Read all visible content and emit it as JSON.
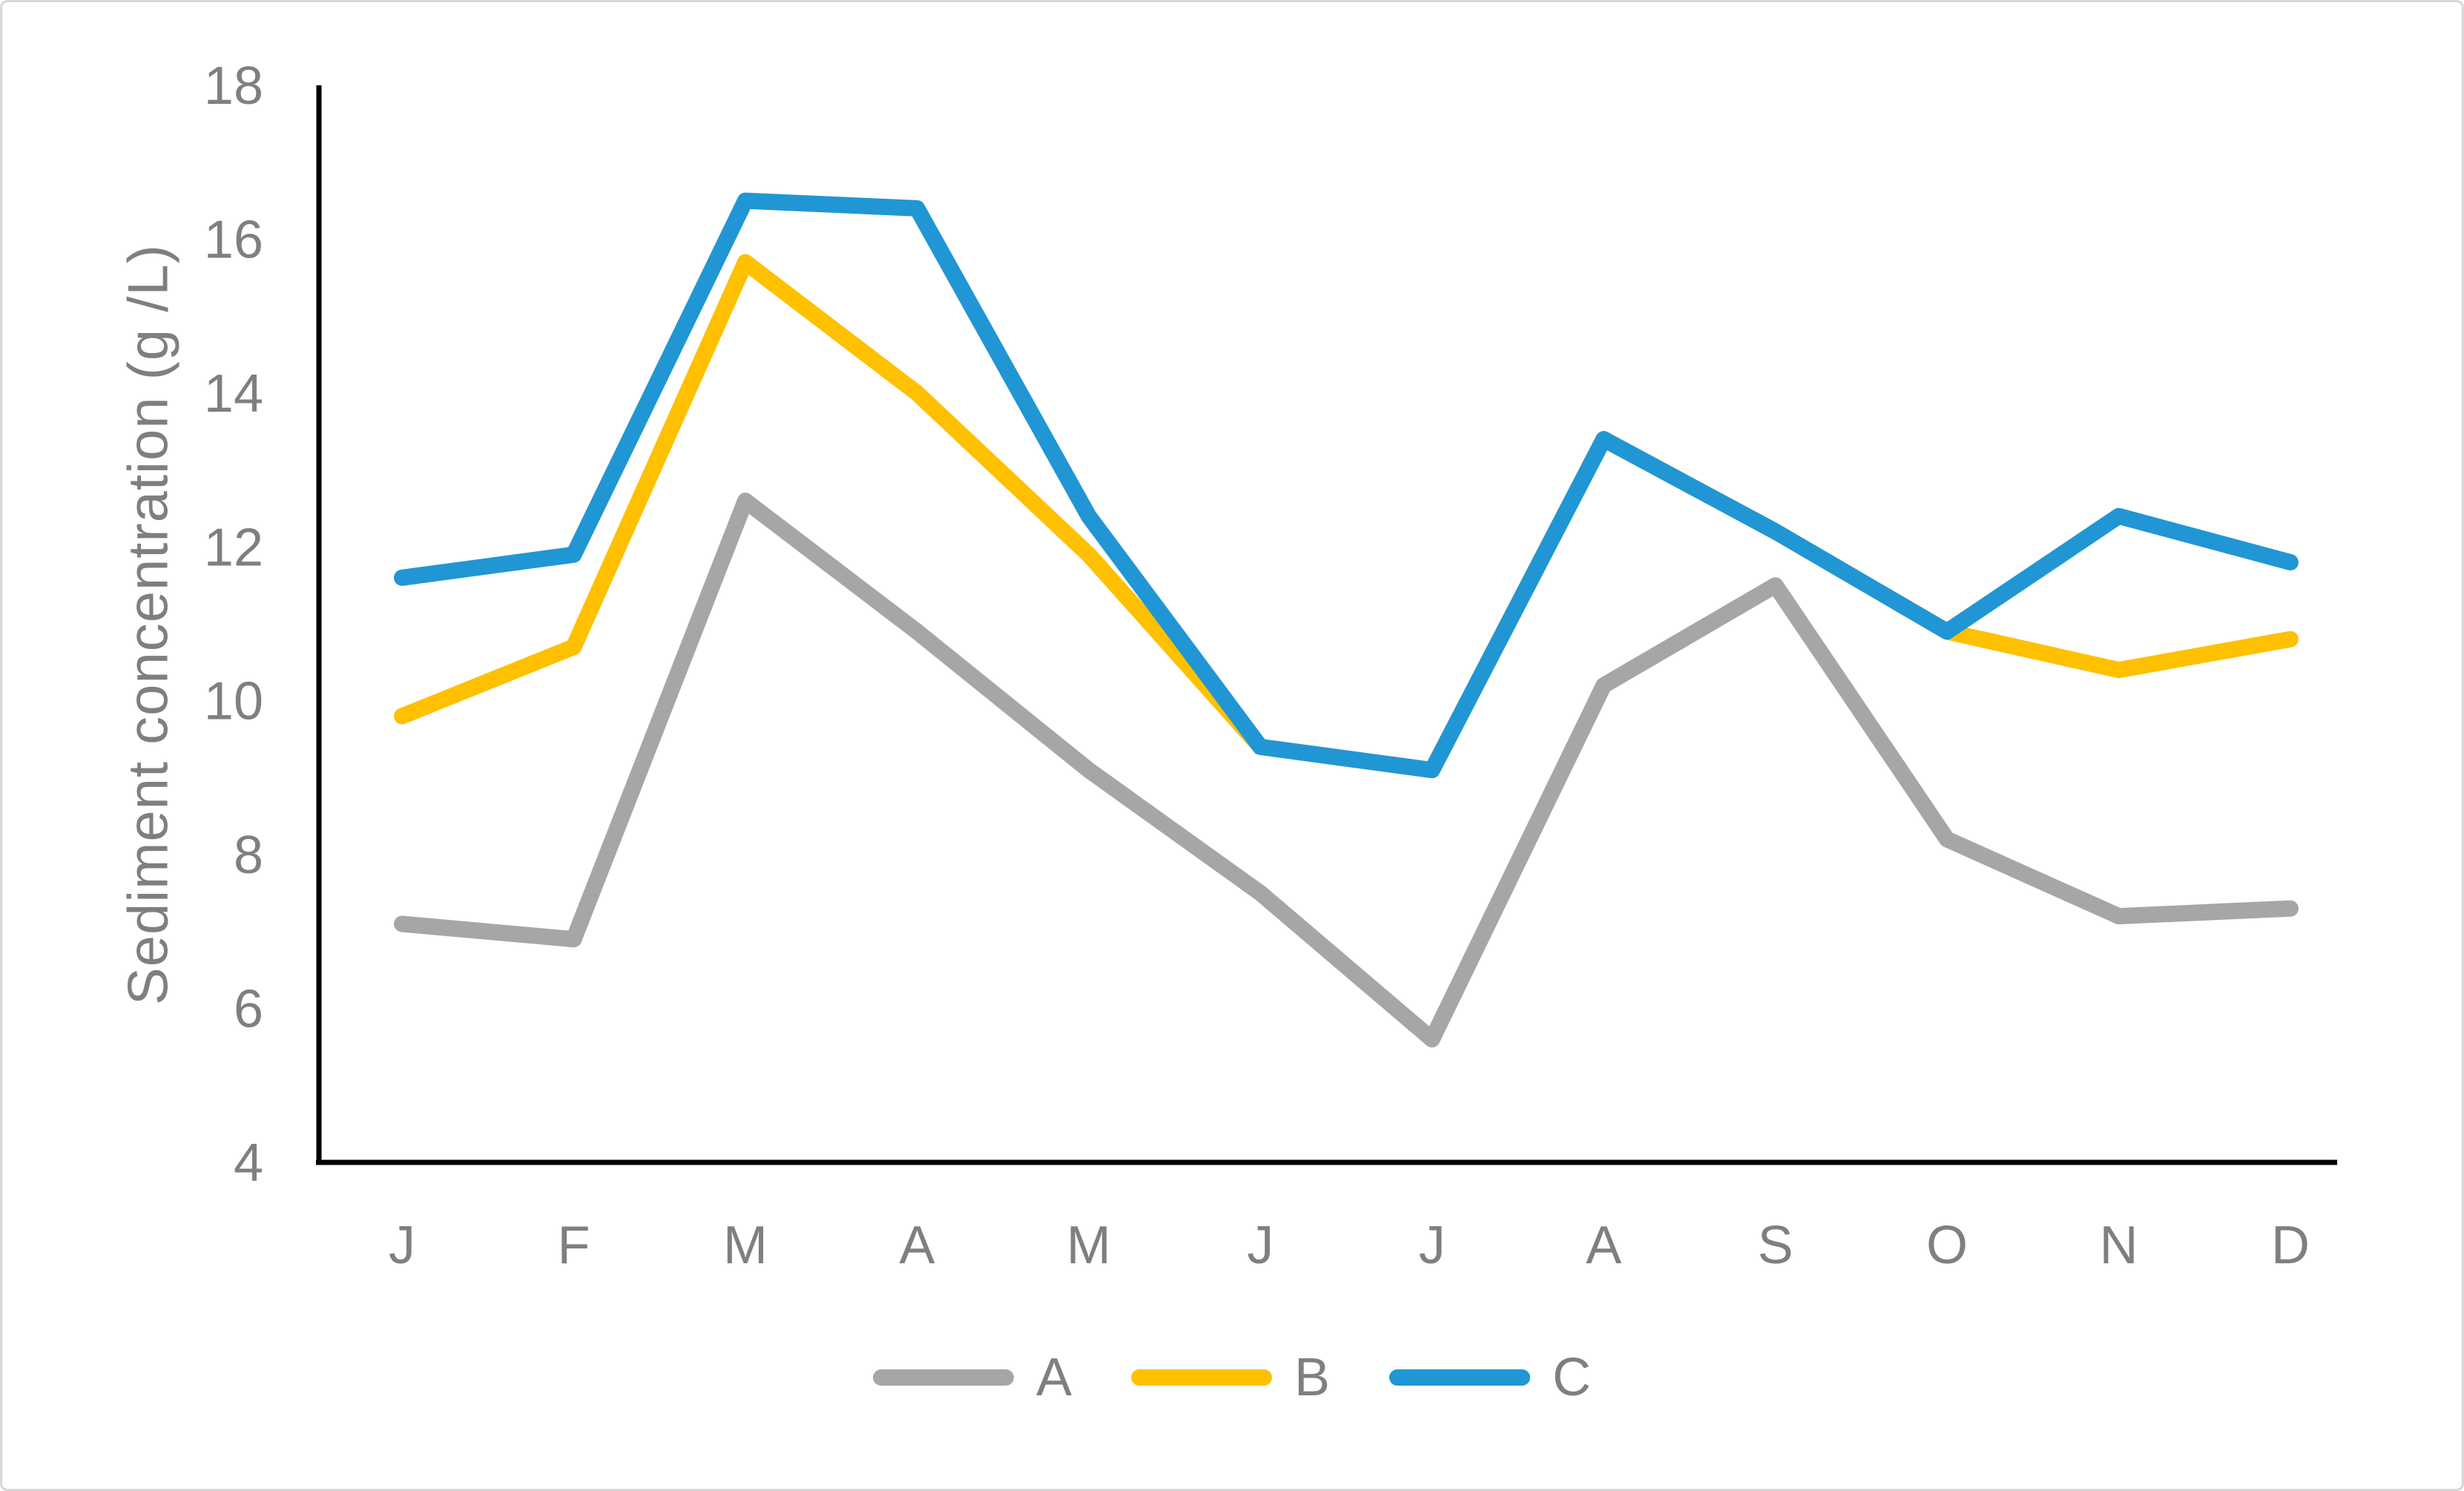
{
  "figure": {
    "background_color": "#ffffff",
    "border_color": "#d7d7d7",
    "text_color": "#7f7f7f",
    "axis_line_color": "#000000"
  },
  "chart_data": {
    "type": "line",
    "title": "",
    "xlabel": "",
    "ylabel": "Sediment concentration (g /L)",
    "categories": [
      "J",
      "F",
      "M",
      "A",
      "M",
      "J",
      "J",
      "A",
      "S",
      "O",
      "N",
      "D"
    ],
    "yticks": [
      4,
      6,
      8,
      10,
      12,
      14,
      16,
      18
    ],
    "ylim": [
      4,
      18
    ],
    "grid": false,
    "legend_position": "bottom",
    "series": [
      {
        "name": "A",
        "color": "#a6a6a6",
        "values": [
          7.1,
          6.9,
          12.6,
          10.9,
          9.1,
          7.5,
          5.6,
          10.2,
          11.5,
          8.2,
          7.2,
          7.3
        ]
      },
      {
        "name": "B",
        "color": "#ffc000",
        "values": [
          9.8,
          10.7,
          15.7,
          14.0,
          11.9,
          9.4,
          9.1,
          13.4,
          12.2,
          10.9,
          10.4,
          10.8
        ]
      },
      {
        "name": "C",
        "color": "#2196d4",
        "values": [
          11.6,
          11.9,
          16.5,
          16.4,
          12.4,
          9.4,
          9.1,
          13.4,
          12.2,
          10.9,
          12.4,
          11.8
        ]
      }
    ]
  }
}
